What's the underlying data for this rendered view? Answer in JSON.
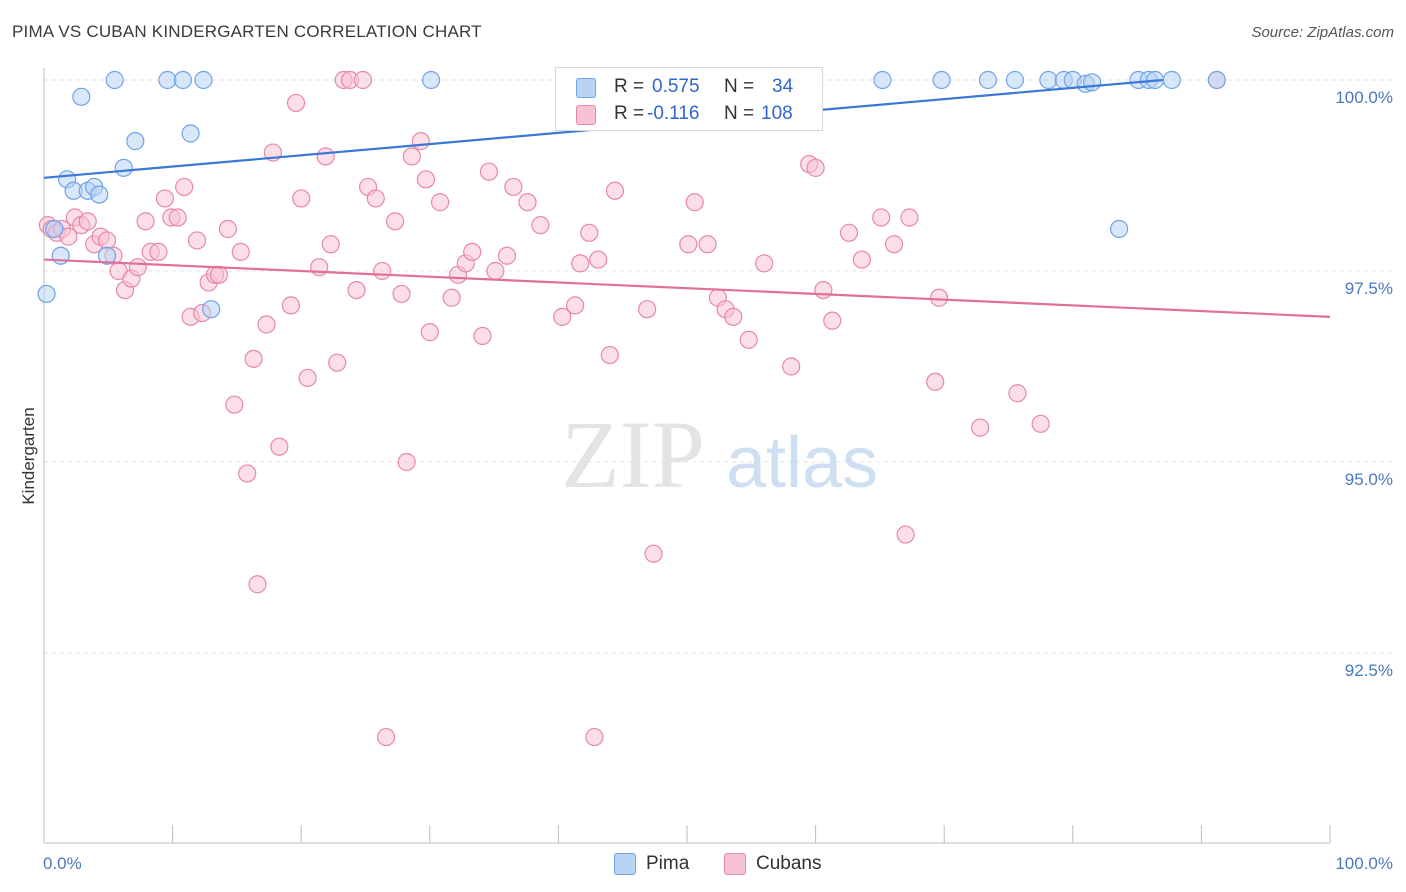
{
  "header": {
    "title": "PIMA VS CUBAN KINDERGARTEN CORRELATION CHART",
    "source": "Source: ZipAtlas.com"
  },
  "watermark": {
    "part1": "ZIP",
    "part2": "atlas"
  },
  "legend": {
    "rows": [
      {
        "r_label": "R =",
        "r_value": "0.575",
        "n_label": "N =",
        "n_value": "34",
        "color": "#6fa3e6",
        "fill": "#b8d3f4"
      },
      {
        "r_label": "R =",
        "r_value": "-0.116",
        "n_label": "N =",
        "n_value": "108",
        "color": "#e888aa",
        "fill": "#f7c3d4"
      }
    ]
  },
  "bottom_legend": [
    {
      "label": "Pima",
      "color": "#6fa3e6",
      "fill": "#b8d3f4"
    },
    {
      "label": "Cubans",
      "color": "#e888aa",
      "fill": "#f7c3d4"
    }
  ],
  "chart_data": {
    "type": "scatter",
    "title": "PIMA VS CUBAN KINDERGARTEN CORRELATION CHART",
    "xlabel": "",
    "ylabel": "Kindergarten",
    "xlim": [
      0,
      100
    ],
    "ylim": [
      90.3,
      100.6
    ],
    "x_tick_labels": [
      "0.0%",
      "100.0%"
    ],
    "y_ticks": [
      {
        "value": 100.0,
        "label": "100.0%"
      },
      {
        "value": 97.5,
        "label": "97.5%"
      },
      {
        "value": 95.0,
        "label": "95.0%"
      },
      {
        "value": 92.5,
        "label": "92.5%"
      }
    ],
    "grid": true,
    "legend_position": "top-center",
    "series": [
      {
        "name": "Pima",
        "color": "#3a78d6",
        "marker_stroke": "#6fa3e6",
        "marker_fill": "#b8d3f4",
        "trend": {
          "x0": 0,
          "y0": 98.72,
          "x1": 87,
          "y1": 100.0
        },
        "points": [
          [
            0.2,
            97.2
          ],
          [
            0.8,
            98.05
          ],
          [
            1.3,
            97.7
          ],
          [
            1.8,
            98.7
          ],
          [
            2.3,
            98.55
          ],
          [
            2.9,
            99.78
          ],
          [
            3.4,
            98.55
          ],
          [
            3.9,
            98.6
          ],
          [
            4.3,
            98.5
          ],
          [
            4.9,
            97.7
          ],
          [
            5.5,
            100.0
          ],
          [
            6.2,
            98.85
          ],
          [
            7.1,
            99.2
          ],
          [
            9.6,
            100.0
          ],
          [
            10.8,
            100.0
          ],
          [
            11.4,
            99.3
          ],
          [
            12.4,
            100.0
          ],
          [
            13.0,
            97.0
          ],
          [
            30.1,
            100.0
          ],
          [
            65.2,
            100.0
          ],
          [
            69.8,
            100.0
          ],
          [
            73.4,
            100.0
          ],
          [
            75.5,
            100.0
          ],
          [
            78.1,
            100.0
          ],
          [
            79.3,
            100.0
          ],
          [
            80.0,
            100.0
          ],
          [
            81.0,
            99.95
          ],
          [
            81.5,
            99.97
          ],
          [
            83.6,
            98.05
          ],
          [
            85.1,
            100.0
          ],
          [
            85.9,
            100.0
          ],
          [
            86.4,
            100.0
          ],
          [
            87.7,
            100.0
          ],
          [
            91.2,
            100.0
          ]
        ]
      },
      {
        "name": "Cubans",
        "color": "#e0709a",
        "marker_stroke": "#e888aa",
        "marker_fill": "#f7c3d4",
        "trend": {
          "x0": 0,
          "y0": 97.65,
          "x1": 100,
          "y1": 96.9
        },
        "points": [
          [
            0.3,
            98.1
          ],
          [
            0.6,
            98.05
          ],
          [
            1.0,
            98.0
          ],
          [
            1.4,
            98.05
          ],
          [
            1.9,
            97.95
          ],
          [
            2.4,
            98.2
          ],
          [
            2.9,
            98.1
          ],
          [
            3.4,
            98.15
          ],
          [
            3.9,
            97.85
          ],
          [
            4.4,
            97.95
          ],
          [
            4.9,
            97.9
          ],
          [
            5.4,
            97.7
          ],
          [
            5.8,
            97.5
          ],
          [
            6.3,
            97.25
          ],
          [
            6.8,
            97.4
          ],
          [
            7.3,
            97.55
          ],
          [
            7.9,
            98.15
          ],
          [
            8.3,
            97.75
          ],
          [
            8.9,
            97.75
          ],
          [
            9.4,
            98.45
          ],
          [
            9.9,
            98.2
          ],
          [
            10.4,
            98.2
          ],
          [
            10.9,
            98.6
          ],
          [
            11.4,
            96.9
          ],
          [
            11.9,
            97.9
          ],
          [
            12.3,
            96.95
          ],
          [
            12.8,
            97.35
          ],
          [
            13.3,
            97.45
          ],
          [
            13.6,
            97.45
          ],
          [
            14.3,
            98.05
          ],
          [
            14.8,
            95.75
          ],
          [
            15.3,
            97.75
          ],
          [
            15.8,
            94.85
          ],
          [
            16.3,
            96.35
          ],
          [
            16.6,
            93.4
          ],
          [
            17.3,
            96.8
          ],
          [
            17.8,
            99.05
          ],
          [
            18.3,
            95.2
          ],
          [
            19.2,
            97.05
          ],
          [
            19.6,
            99.7
          ],
          [
            20.0,
            98.45
          ],
          [
            20.5,
            96.1
          ],
          [
            21.4,
            97.55
          ],
          [
            21.9,
            99.0
          ],
          [
            22.3,
            97.85
          ],
          [
            22.8,
            96.3
          ],
          [
            23.3,
            100.0
          ],
          [
            23.8,
            100.0
          ],
          [
            24.3,
            97.25
          ],
          [
            24.8,
            100.0
          ],
          [
            25.2,
            98.6
          ],
          [
            25.8,
            98.45
          ],
          [
            26.3,
            97.5
          ],
          [
            26.6,
            91.4
          ],
          [
            27.3,
            98.15
          ],
          [
            27.8,
            97.2
          ],
          [
            28.2,
            95.0
          ],
          [
            28.6,
            99.0
          ],
          [
            29.3,
            99.2
          ],
          [
            29.7,
            98.7
          ],
          [
            30.0,
            96.7
          ],
          [
            30.8,
            98.4
          ],
          [
            31.7,
            97.15
          ],
          [
            32.2,
            97.45
          ],
          [
            32.8,
            97.6
          ],
          [
            33.3,
            97.75
          ],
          [
            34.1,
            96.65
          ],
          [
            34.6,
            98.8
          ],
          [
            35.1,
            97.5
          ],
          [
            36.0,
            97.7
          ],
          [
            36.5,
            98.6
          ],
          [
            37.6,
            98.4
          ],
          [
            38.6,
            98.1
          ],
          [
            40.3,
            96.9
          ],
          [
            41.3,
            97.05
          ],
          [
            41.7,
            97.6
          ],
          [
            42.4,
            98.0
          ],
          [
            42.8,
            91.4
          ],
          [
            43.1,
            97.65
          ],
          [
            44.0,
            96.4
          ],
          [
            44.4,
            98.55
          ],
          [
            46.9,
            97.0
          ],
          [
            47.4,
            93.8
          ],
          [
            50.1,
            97.85
          ],
          [
            50.6,
            98.4
          ],
          [
            51.6,
            97.85
          ],
          [
            52.4,
            97.15
          ],
          [
            53.0,
            97.0
          ],
          [
            53.6,
            96.9
          ],
          [
            54.8,
            96.6
          ],
          [
            56.0,
            97.6
          ],
          [
            58.1,
            96.25
          ],
          [
            59.5,
            98.9
          ],
          [
            60.0,
            98.85
          ],
          [
            60.6,
            97.25
          ],
          [
            61.3,
            96.85
          ],
          [
            62.6,
            98.0
          ],
          [
            63.6,
            97.65
          ],
          [
            65.1,
            98.2
          ],
          [
            66.1,
            97.85
          ],
          [
            67.0,
            94.05
          ],
          [
            67.3,
            98.2
          ],
          [
            69.3,
            96.05
          ],
          [
            69.6,
            97.15
          ],
          [
            72.8,
            95.45
          ],
          [
            75.7,
            95.9
          ],
          [
            77.5,
            95.5
          ],
          [
            91.2,
            100.0
          ]
        ]
      }
    ]
  }
}
